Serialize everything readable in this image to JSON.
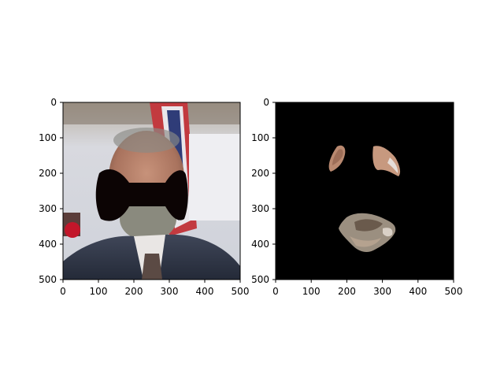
{
  "chart_data": [
    {
      "type": "image",
      "content": "photo-masked-eyes",
      "xlim": [
        0,
        500
      ],
      "ylim": [
        500,
        0
      ],
      "xticks": [
        0,
        100,
        200,
        300,
        400,
        500
      ],
      "yticks": [
        0,
        100,
        200,
        300,
        400,
        500
      ],
      "xtick_labels": [
        "0",
        "100",
        "200",
        "300",
        "400",
        "500"
      ],
      "ytick_labels": [
        "0",
        "100",
        "200",
        "300",
        "400",
        "500"
      ]
    },
    {
      "type": "image",
      "content": "mask-revealed-regions",
      "xlim": [
        0,
        500
      ],
      "ylim": [
        500,
        0
      ],
      "xticks": [
        0,
        100,
        200,
        300,
        400,
        500
      ],
      "yticks": [
        0,
        100,
        200,
        300,
        400,
        500
      ],
      "xtick_labels": [
        "0",
        "100",
        "200",
        "300",
        "400",
        "500"
      ],
      "ytick_labels": [
        "0",
        "100",
        "200",
        "300",
        "400",
        "500"
      ]
    }
  ]
}
